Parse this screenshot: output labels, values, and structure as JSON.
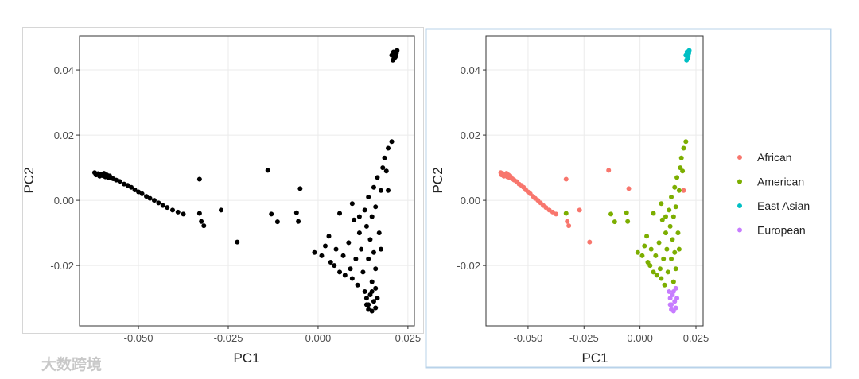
{
  "chart_data": [
    {
      "type": "scatter",
      "xlabel": "PC1",
      "ylabel": "PC2",
      "color": "#000000",
      "grid": true,
      "xlim": [
        -0.0664,
        0.0268
      ],
      "ylim": [
        -0.0385,
        0.0505
      ],
      "xticks": [
        {
          "value": -0.05,
          "label": "-0.050"
        },
        {
          "value": -0.025,
          "label": "-0.025"
        },
        {
          "value": 0,
          "label": "0.000"
        },
        {
          "value": 0.025,
          "label": "0.025"
        }
      ],
      "yticks": [
        {
          "value": -0.02,
          "label": "-0.02"
        },
        {
          "value": 0,
          "label": "0.00"
        },
        {
          "value": 0.02,
          "label": "0.02"
        },
        {
          "value": 0.04,
          "label": "0.04"
        }
      ],
      "x": [
        -0.0622,
        -0.0618,
        -0.0612,
        -0.0608,
        -0.0604,
        -0.06,
        -0.0596,
        -0.0592,
        -0.0588,
        -0.0584,
        -0.058,
        -0.0576,
        -0.057,
        -0.0562,
        -0.0552,
        -0.054,
        -0.053,
        -0.052,
        -0.051,
        -0.05,
        -0.049,
        -0.0478,
        -0.0468,
        -0.0456,
        -0.0444,
        -0.0432,
        -0.042,
        -0.0405,
        -0.039,
        -0.0375,
        -0.033,
        -0.0325,
        -0.0318,
        -0.027,
        -0.0225,
        -0.014,
        -0.005,
        0.0195,
        -0.033,
        -0.013,
        -0.0113,
        -0.006,
        -0.0055,
        -0.001,
        0.001,
        0.002,
        0.0035,
        0.0045,
        0.003,
        0.005,
        0.006,
        0.007,
        0.0075,
        0.0085,
        0.009,
        0.0095,
        0.01,
        0.0105,
        0.011,
        0.0115,
        0.012,
        0.0125,
        0.013,
        0.0135,
        0.014,
        0.014,
        0.0145,
        0.015,
        0.015,
        0.0155,
        0.0155,
        0.016,
        0.016,
        0.0165,
        0.017,
        0.0175,
        0.0175,
        0.018,
        0.0185,
        0.019,
        0.0195,
        0.0205,
        0.0095,
        0.006,
        0.0115,
        0.0205,
        0.021,
        0.0215,
        0.0218,
        0.0212,
        0.022,
        0.0208,
        0.0216,
        0.013,
        0.0135,
        0.014,
        0.0145,
        0.015,
        0.0155,
        0.016,
        0.014,
        0.0165,
        0.015,
        0.0135,
        0.016
      ],
      "values": [
        0.0085,
        0.0078,
        0.0082,
        0.0074,
        0.008,
        0.0076,
        0.0083,
        0.0072,
        0.0078,
        0.007,
        0.0075,
        0.0068,
        0.0066,
        0.0062,
        0.0058,
        0.005,
        0.0046,
        0.004,
        0.0032,
        0.0026,
        0.002,
        0.0012,
        0.0006,
        0,
        -0.0008,
        -0.0016,
        -0.0022,
        -0.003,
        -0.0036,
        -0.0042,
        0.0065,
        -0.0065,
        -0.0078,
        -0.003,
        -0.0128,
        0.0092,
        0.0036,
        0.003,
        -0.004,
        -0.0042,
        -0.0066,
        -0.0038,
        -0.0065,
        -0.016,
        -0.017,
        -0.014,
        -0.019,
        -0.02,
        -0.011,
        -0.015,
        -0.022,
        -0.017,
        -0.023,
        -0.013,
        -0.021,
        -0.024,
        -0.006,
        -0.018,
        -0.026,
        -0.01,
        -0.015,
        -0.022,
        -0.003,
        -0.008,
        -0.018,
        0.001,
        -0.012,
        -0.005,
        -0.025,
        0.004,
        -0.016,
        -0.002,
        -0.021,
        0.007,
        -0.01,
        0.003,
        -0.015,
        0.01,
        0.013,
        0.009,
        0.016,
        0.018,
        -0.001,
        -0.004,
        -0.005,
        0.0445,
        0.0455,
        0.044,
        0.0452,
        0.0435,
        0.046,
        0.043,
        0.0448,
        -0.028,
        -0.03,
        -0.032,
        -0.029,
        -0.034,
        -0.031,
        -0.027,
        -0.0335,
        -0.03,
        -0.028,
        -0.032,
        -0.033
      ]
    },
    {
      "type": "scatter",
      "xlabel": "PC1",
      "ylabel": "PC2",
      "grid": true,
      "legend": "right",
      "xlim": [
        -0.0688,
        0.0282
      ],
      "ylim": [
        -0.0385,
        0.0505
      ],
      "xticks": [
        {
          "value": -0.05,
          "label": "-0.050"
        },
        {
          "value": -0.025,
          "label": "-0.025"
        },
        {
          "value": 0,
          "label": "0.000"
        },
        {
          "value": 0.025,
          "label": "0.025"
        }
      ],
      "yticks": [
        {
          "value": -0.02,
          "label": "-0.02"
        },
        {
          "value": 0,
          "label": "0.00"
        },
        {
          "value": 0.02,
          "label": "0.02"
        },
        {
          "value": 0.04,
          "label": "0.04"
        }
      ],
      "series": [
        {
          "name": "African",
          "color": "#F8766D",
          "x": [
            -0.0622,
            -0.0618,
            -0.0612,
            -0.0608,
            -0.0604,
            -0.06,
            -0.0596,
            -0.0592,
            -0.0588,
            -0.0584,
            -0.058,
            -0.0576,
            -0.057,
            -0.0562,
            -0.0552,
            -0.054,
            -0.053,
            -0.052,
            -0.051,
            -0.05,
            -0.049,
            -0.0478,
            -0.0468,
            -0.0456,
            -0.0444,
            -0.0432,
            -0.042,
            -0.0405,
            -0.039,
            -0.0375,
            -0.033,
            -0.0325,
            -0.0318,
            -0.027,
            -0.0225,
            -0.014,
            -0.005,
            0.0195
          ],
          "values": [
            0.0085,
            0.0078,
            0.0082,
            0.0074,
            0.008,
            0.0076,
            0.0083,
            0.0072,
            0.0078,
            0.007,
            0.0075,
            0.0068,
            0.0066,
            0.0062,
            0.0058,
            0.005,
            0.0046,
            0.004,
            0.0032,
            0.0026,
            0.002,
            0.0012,
            0.0006,
            0,
            -0.0008,
            -0.0016,
            -0.0022,
            -0.003,
            -0.0036,
            -0.0042,
            0.0065,
            -0.0065,
            -0.0078,
            -0.003,
            -0.0128,
            0.0092,
            0.0036,
            0.003
          ]
        },
        {
          "name": "American",
          "color": "#7CAE00",
          "x": [
            -0.033,
            -0.013,
            -0.0113,
            -0.006,
            -0.0055,
            -0.001,
            0.001,
            0.002,
            0.0035,
            0.0045,
            0.003,
            0.005,
            0.006,
            0.007,
            0.0075,
            0.0085,
            0.009,
            0.0095,
            0.01,
            0.0105,
            0.011,
            0.0115,
            0.012,
            0.0125,
            0.013,
            0.0135,
            0.014,
            0.014,
            0.0145,
            0.015,
            0.015,
            0.0155,
            0.0155,
            0.016,
            0.016,
            0.0165,
            0.017,
            0.0175,
            0.0175,
            0.018,
            0.0185,
            0.019,
            0.0195,
            0.0205,
            0.0095,
            0.006,
            0.0115
          ],
          "values": [
            -0.004,
            -0.0042,
            -0.0066,
            -0.0038,
            -0.0065,
            -0.016,
            -0.017,
            -0.014,
            -0.019,
            -0.02,
            -0.011,
            -0.015,
            -0.022,
            -0.017,
            -0.023,
            -0.013,
            -0.021,
            -0.024,
            -0.006,
            -0.018,
            -0.026,
            -0.01,
            -0.015,
            -0.022,
            -0.003,
            -0.008,
            -0.018,
            0.001,
            -0.012,
            -0.005,
            -0.025,
            0.004,
            -0.016,
            -0.002,
            -0.021,
            0.007,
            -0.01,
            0.003,
            -0.015,
            0.01,
            0.013,
            0.009,
            0.016,
            0.018,
            -0.001,
            -0.004,
            -0.005
          ]
        },
        {
          "name": "East Asian",
          "color": "#00BFC4",
          "x": [
            0.0205,
            0.021,
            0.0215,
            0.0218,
            0.0212,
            0.022,
            0.0208,
            0.0216
          ],
          "values": [
            0.0445,
            0.0455,
            0.044,
            0.0452,
            0.0435,
            0.046,
            0.043,
            0.0448
          ]
        },
        {
          "name": "European",
          "color": "#C77CFF",
          "x": [
            0.013,
            0.0135,
            0.014,
            0.0145,
            0.015,
            0.0155,
            0.016,
            0.014,
            0.0165,
            0.015,
            0.0135,
            0.016
          ],
          "values": [
            -0.028,
            -0.03,
            -0.032,
            -0.029,
            -0.034,
            -0.031,
            -0.027,
            -0.0335,
            -0.03,
            -0.028,
            -0.032,
            -0.033
          ]
        }
      ]
    }
  ],
  "watermark": "大数跨境"
}
